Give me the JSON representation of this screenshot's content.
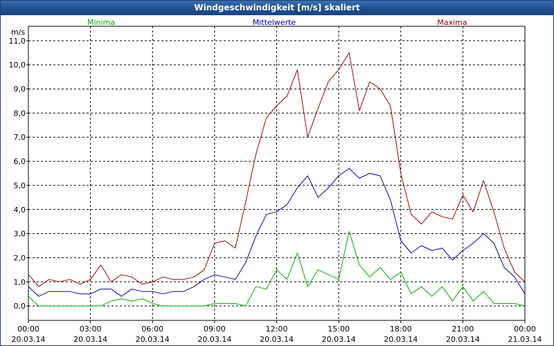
{
  "window": {
    "title": "Windgeschwindigkeit [m/s] skaliert"
  },
  "colors": {
    "minima": "#00aa00",
    "mittel": "#0000aa",
    "maxima": "#a00000",
    "grid": "#000000",
    "frame": "#000000"
  },
  "chart_data": {
    "type": "line",
    "title": "Windgeschwindigkeit [m/s] skaliert",
    "ylabel": "m/s",
    "ylim": [
      -0.6,
      11.6
    ],
    "xlim": [
      0,
      24
    ],
    "y_ticks": [
      0,
      1,
      2,
      3,
      4,
      5,
      6,
      7,
      8,
      9,
      10,
      11
    ],
    "y_tick_labels": [
      "0,0",
      "1,0",
      "2,0",
      "3,0",
      "4,0",
      "5,0",
      "6,0",
      "7,0",
      "8,0",
      "9,0",
      "10,0",
      "11,0"
    ],
    "x_ticks": [
      0,
      3,
      6,
      9,
      12,
      15,
      18,
      21,
      24
    ],
    "x_tick_times": [
      "00:00",
      "03:00",
      "06:00",
      "09:00",
      "12:00",
      "15:00",
      "18:00",
      "21:00",
      "00:00"
    ],
    "x_tick_dates": [
      "20.03.14",
      "20.03.14",
      "20.03.14",
      "20.03.14",
      "20.03.14",
      "20.03.14",
      "20.03.14",
      "20.03.14",
      "21.03.14"
    ],
    "grid": true,
    "legend": [
      "Minima",
      "Mittelwerte",
      "Maxima"
    ],
    "series": [
      {
        "name": "Minima",
        "x": [
          0,
          0.5,
          1,
          1.5,
          2,
          2.5,
          3,
          3.5,
          4,
          4.5,
          5,
          5.5,
          6,
          6.5,
          7,
          7.5,
          8,
          8.5,
          9,
          9.5,
          10,
          10.5,
          11,
          11.5,
          12,
          12.5,
          13,
          13.5,
          14,
          14.5,
          15,
          15.5,
          16,
          16.5,
          17,
          17.5,
          18,
          18.5,
          19,
          19.5,
          20,
          20.5,
          21,
          21.5,
          22,
          22.5,
          23,
          23.5,
          24
        ],
        "values": [
          0.4,
          0,
          0,
          0,
          0,
          0,
          0,
          0,
          0.2,
          0.3,
          0.2,
          0.3,
          0.1,
          0,
          0,
          0,
          0,
          0,
          0.1,
          0.1,
          0.1,
          0,
          0.8,
          0.7,
          1.5,
          1.1,
          2.2,
          0.8,
          1.5,
          1.3,
          1.1,
          3.1,
          1.7,
          1.2,
          1.6,
          1.1,
          1.4,
          0.5,
          0.8,
          0.4,
          0.8,
          0.2,
          0.8,
          0.2,
          0.6,
          0.1,
          0.1,
          0.1,
          0
        ]
      },
      {
        "name": "Mittelwerte",
        "x": [
          0,
          0.5,
          1,
          1.5,
          2,
          2.5,
          3,
          3.5,
          4,
          4.5,
          5,
          5.5,
          6,
          6.5,
          7,
          7.5,
          8,
          8.5,
          9,
          9.5,
          10,
          10.5,
          11,
          11.5,
          12,
          12.5,
          13,
          13.5,
          14,
          14.5,
          15,
          15.5,
          16,
          16.5,
          17,
          17.5,
          18,
          18.5,
          19,
          19.5,
          20,
          20.5,
          21,
          21.5,
          22,
          22.5,
          23,
          23.5,
          24
        ],
        "values": [
          0.8,
          0.4,
          0.6,
          0.6,
          0.6,
          0.5,
          0.5,
          0.7,
          0.7,
          0.4,
          0.7,
          0.6,
          0.6,
          0.5,
          0.6,
          0.6,
          0.8,
          1.1,
          1.3,
          1.2,
          1.1,
          1.8,
          2.9,
          3.8,
          3.9,
          4.2,
          4.9,
          5.4,
          4.5,
          4.9,
          5.4,
          5.7,
          5.3,
          5.5,
          5.4,
          4.4,
          2.7,
          2.2,
          2.5,
          2.3,
          2.4,
          1.9,
          2.3,
          2.6,
          3.0,
          2.6,
          1.6,
          1.2,
          0.5
        ]
      },
      {
        "name": "Maxima",
        "x": [
          0,
          0.5,
          1,
          1.5,
          2,
          2.5,
          3,
          3.5,
          4,
          4.5,
          5,
          5.5,
          6,
          6.5,
          7,
          7.5,
          8,
          8.5,
          9,
          9.5,
          10,
          10.5,
          11,
          11.5,
          12,
          12.5,
          13,
          13.5,
          14,
          14.5,
          15,
          15.5,
          16,
          16.5,
          17,
          17.5,
          18,
          18.5,
          19,
          19.5,
          20,
          20.5,
          21,
          21.5,
          22,
          22.5,
          23,
          23.5,
          24
        ],
        "values": [
          1.3,
          0.8,
          1.1,
          1.0,
          1.1,
          0.9,
          1.1,
          1.7,
          1.0,
          1.3,
          1.2,
          0.9,
          1.0,
          1.2,
          1.1,
          1.1,
          1.2,
          1.5,
          2.6,
          2.7,
          2.4,
          4.3,
          6.3,
          7.8,
          8.3,
          8.7,
          9.8,
          7.0,
          8.2,
          9.3,
          9.8,
          10.5,
          8.1,
          9.3,
          9.0,
          8.3,
          5.5,
          3.8,
          3.4,
          3.9,
          3.7,
          3.6,
          4.6,
          3.9,
          5.2,
          3.9,
          2.4,
          1.4,
          1.0
        ]
      }
    ]
  }
}
